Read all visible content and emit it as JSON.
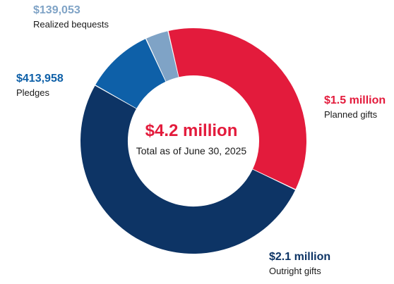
{
  "chart_data": {
    "type": "pie",
    "variant": "donut",
    "total_label": "$4.2 million",
    "total_caption": "Total as of June 30, 2025",
    "slices": [
      {
        "key": "planned",
        "value_label": "$1.5 million",
        "category": "Planned gifts",
        "value": 1500000,
        "color": "#e31b3c"
      },
      {
        "key": "outright",
        "value_label": "$2.1 million",
        "category": "Outright gifts",
        "value": 2147000,
        "color": "#0d3465"
      },
      {
        "key": "pledges",
        "value_label": "$413,958",
        "category": "Pledges",
        "value": 413958,
        "color": "#0e60a8"
      },
      {
        "key": "bequests",
        "value_label": "$139,053",
        "category": "Realized bequests",
        "value": 139053,
        "color": "#7fa3c6"
      }
    ],
    "center_value_color": "#e31b3c",
    "label_value_colors": {
      "planned": "#e31b3c",
      "outright": "#0d3465",
      "pledges": "#0e60a8",
      "bequests": "#7fa3c6"
    }
  }
}
